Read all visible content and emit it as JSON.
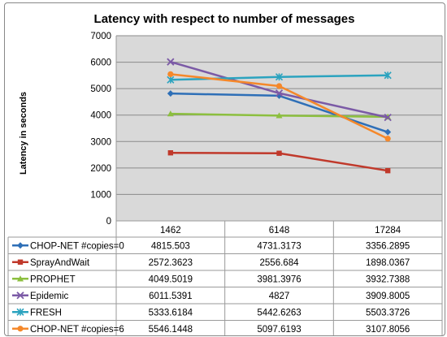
{
  "chart_data": {
    "type": "line",
    "title": "Latency with respect to number of messages",
    "ylabel": "Latency in seconds",
    "xlabel": "",
    "ylim": [
      0,
      7000
    ],
    "yticks": [
      0,
      1000,
      2000,
      3000,
      4000,
      5000,
      6000,
      7000
    ],
    "grid": true,
    "legend": "data-table-below",
    "categories": [
      "1462",
      "6148",
      "17284"
    ],
    "series": [
      {
        "name": "CHOP-NET #copies=0",
        "labels": [
          "4815.503",
          "4731.3173",
          "3356.2895"
        ],
        "values": [
          4815.503,
          4731.3173,
          3356.2895
        ],
        "color": "#2e6fb7",
        "marker": "diamond"
      },
      {
        "name": "SprayAndWait",
        "labels": [
          "2572.3623",
          "2556.684",
          "1898.0367"
        ],
        "values": [
          2572.3623,
          2556.684,
          1898.0367
        ],
        "color": "#c0392b",
        "marker": "square"
      },
      {
        "name": "PROPHET",
        "labels": [
          "4049.5019",
          "3981.3976",
          "3932.7388"
        ],
        "values": [
          4049.5019,
          3981.3976,
          3932.7388
        ],
        "color": "#8cbf3f",
        "marker": "triangle"
      },
      {
        "name": "Epidemic",
        "labels": [
          "6011.5391",
          "4827",
          "3909.8005"
        ],
        "values": [
          6011.5391,
          4827,
          3909.8005
        ],
        "color": "#7b5aa6",
        "marker": "x"
      },
      {
        "name": "FRESH",
        "labels": [
          "5333.6184",
          "5442.6263",
          "5503.3726"
        ],
        "values": [
          5333.6184,
          5442.6263,
          5503.3726
        ],
        "color": "#2ba3bf",
        "marker": "star"
      },
      {
        "name": "CHOP-NET #copies=6",
        "labels": [
          "5546.1448",
          "5097.6193",
          "3107.8056"
        ],
        "values": [
          5546.1448,
          5097.6193,
          3107.8056
        ],
        "color": "#f5882a",
        "marker": "circle"
      }
    ]
  }
}
